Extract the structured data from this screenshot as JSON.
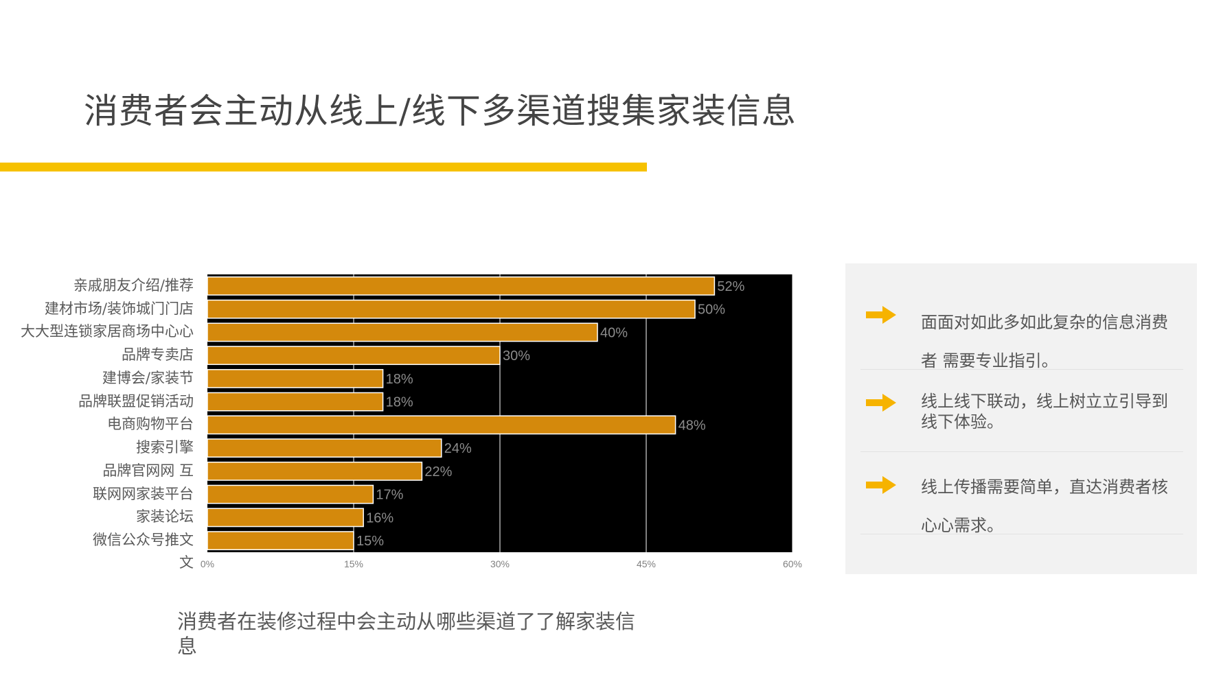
{
  "slide": {
    "title": "消费者会主动从线上/线下多渠道搜集家装信息",
    "chart_caption": "消费者在装修过程中会主动从哪些渠道了了解家装信息"
  },
  "colors": {
    "accent": "#f6c100",
    "bar": "#d4890c",
    "plot_bg": "#000000",
    "panel_bg": "#f2f2f2",
    "arrow": "#f6b300"
  },
  "chart_data": {
    "type": "bar",
    "orientation": "horizontal",
    "categories": [
      "亲戚朋友介绍/推荐",
      "建材市场/装饰城门门店",
      "大大型连锁家居商场中心心",
      "品牌专卖店",
      "建博会/家装节",
      "品牌联盟促销活动",
      "电商购物平台",
      "搜索引擎",
      "品牌官网网 互",
      "联网网家装平台",
      "家装论坛",
      "微信公众号推文"
    ],
    "values": [
      52,
      50,
      40,
      30,
      18,
      18,
      48,
      24,
      22,
      17,
      16,
      15
    ],
    "value_labels": [
      "52%",
      "50%",
      "40%",
      "30%",
      "18%",
      "18%",
      "48%",
      "24%",
      "22%",
      "17%",
      "16%",
      "15%"
    ],
    "extra_axis_label": "文",
    "xlim": [
      0,
      60
    ],
    "xticks": [
      "0%",
      "15%",
      "30%",
      "45%",
      "60%"
    ],
    "grid": true
  },
  "panel": {
    "items": [
      {
        "text": "面面对如此多如此复杂的信息消费者 需要专业指引。",
        "icon": "right-arrow-icon"
      },
      {
        "text": "线上线下联动，线上树立立引导到线下体验。",
        "icon": "right-arrow-icon"
      },
      {
        "text": "线上传播需要简单，直达消费者核心心需求。",
        "icon": "right-arrow-icon"
      }
    ]
  }
}
